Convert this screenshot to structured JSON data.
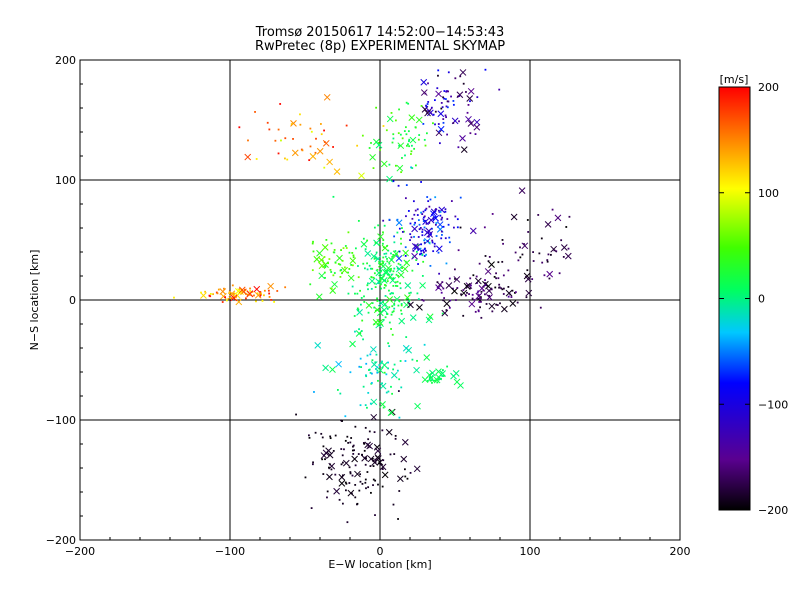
{
  "chart_data": {
    "type": "scatter",
    "title": "Tromsø 20150617 14:52:00−14:53:43",
    "subtitle": "RwPretec (8p) EXPERIMENTAL SKYMAP",
    "xlabel": "E−W location [km]",
    "ylabel": "N−S location [km]",
    "xlim": [
      -200,
      200
    ],
    "ylim": [
      -200,
      200
    ],
    "x_ticks": [
      "−200",
      "−100",
      "0",
      "100",
      "200"
    ],
    "y_ticks": [
      "−200",
      "−100",
      "0",
      "100",
      "200"
    ],
    "grid": true,
    "colorbar": {
      "label": "[m/s]",
      "range": [
        -200,
        200
      ],
      "ticks": [
        "200",
        "100",
        "0",
        "−100",
        "−200"
      ],
      "colormap": "rainbow (black→purple→blue→cyan→green→yellow→red)"
    },
    "marker_types": [
      "x",
      "dot"
    ],
    "clusters": [
      {
        "x_center": 5,
        "y_center": 15,
        "x_spread": 20,
        "y_spread": 40,
        "count": 220,
        "velocity_range": [
          -10,
          40
        ]
      },
      {
        "x_center": 30,
        "y_center": 60,
        "x_spread": 18,
        "y_spread": 25,
        "count": 140,
        "velocity_range": [
          -140,
          -40
        ]
      },
      {
        "x_center": 65,
        "y_center": 5,
        "x_spread": 30,
        "y_spread": 15,
        "count": 110,
        "velocity_range": [
          -200,
          -140
        ]
      },
      {
        "x_center": 45,
        "y_center": 160,
        "x_spread": 20,
        "y_spread": 25,
        "count": 80,
        "velocity_range": [
          -200,
          -60
        ]
      },
      {
        "x_center": 15,
        "y_center": 130,
        "x_spread": 18,
        "y_spread": 25,
        "count": 60,
        "velocity_range": [
          0,
          60
        ]
      },
      {
        "x_center": -15,
        "y_center": -135,
        "x_spread": 28,
        "y_spread": 30,
        "count": 150,
        "velocity_range": [
          -200,
          -180
        ]
      },
      {
        "x_center": -95,
        "y_center": 5,
        "x_spread": 25,
        "y_spread": 6,
        "count": 70,
        "velocity_range": [
          100,
          200
        ]
      },
      {
        "x_center": -50,
        "y_center": 135,
        "x_spread": 30,
        "y_spread": 25,
        "count": 45,
        "velocity_range": [
          80,
          200
        ]
      },
      {
        "x_center": 100,
        "y_center": 40,
        "x_spread": 30,
        "y_spread": 30,
        "count": 60,
        "velocity_range": [
          -200,
          -150
        ]
      },
      {
        "x_center": 40,
        "y_center": -65,
        "x_spread": 10,
        "y_spread": 5,
        "count": 35,
        "velocity_range": [
          0,
          20
        ]
      },
      {
        "x_center": -30,
        "y_center": 30,
        "x_spread": 15,
        "y_spread": 20,
        "count": 60,
        "velocity_range": [
          20,
          70
        ]
      },
      {
        "x_center": 0,
        "y_center": -60,
        "x_spread": 25,
        "y_spread": 30,
        "count": 80,
        "velocity_range": [
          -40,
          20
        ]
      }
    ]
  }
}
